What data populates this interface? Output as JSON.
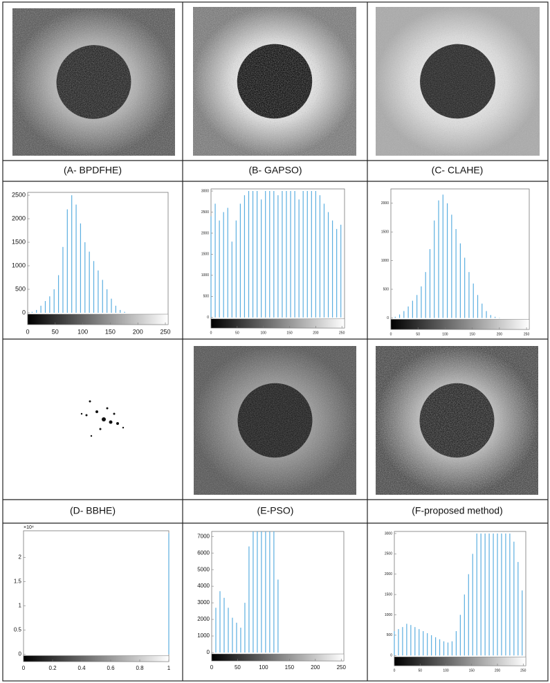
{
  "captions": [
    "(A- BPDFHE)",
    "(B- GAPSO)",
    "(C- CLAHE)",
    "(D- BBHE)",
    "(E-PSO)",
    "(F-proposed method)"
  ],
  "chart_data": [
    {
      "type": "bar",
      "color": "#5aaee0",
      "x": [
        0,
        8,
        16,
        24,
        32,
        40,
        48,
        56,
        64,
        72,
        80,
        88,
        96,
        104,
        112,
        120,
        128,
        136,
        144,
        152,
        160,
        168,
        176,
        184
      ],
      "values": [
        0,
        20,
        60,
        150,
        250,
        350,
        500,
        800,
        1400,
        2200,
        2500,
        2300,
        1900,
        1500,
        1300,
        1100,
        900,
        700,
        500,
        300,
        150,
        60,
        20,
        0
      ],
      "xlim": [
        0,
        255
      ],
      "ylim": [
        -250,
        2560
      ],
      "xticks": [
        0,
        50,
        100,
        150,
        200,
        250
      ],
      "yticks": [
        0,
        500,
        1000,
        1500,
        2000,
        2500
      ]
    },
    {
      "type": "bar",
      "color": "#5aaee0",
      "x": [
        0,
        8,
        16,
        24,
        32,
        40,
        48,
        56,
        64,
        72,
        80,
        88,
        96,
        104,
        112,
        120,
        128,
        136,
        144,
        152,
        160,
        168,
        176,
        184,
        192,
        200,
        208,
        216,
        224,
        232,
        240,
        248
      ],
      "values": [
        2400,
        2700,
        2300,
        2500,
        2600,
        1800,
        2300,
        2700,
        2900,
        3000,
        3000,
        3000,
        2800,
        3000,
        3000,
        3000,
        2900,
        3000,
        3000,
        3000,
        3000,
        2800,
        3000,
        3000,
        3000,
        3000,
        2900,
        2700,
        2500,
        2300,
        2100,
        2200
      ],
      "xlim": [
        0,
        255
      ],
      "ylim": [
        -250,
        3050
      ],
      "xticks": [
        0,
        50,
        100,
        150,
        200,
        250
      ],
      "yticks": [
        0,
        500,
        1000,
        1500,
        2000,
        2500,
        3000
      ]
    },
    {
      "type": "bar",
      "color": "#5aaee0",
      "x": [
        0,
        8,
        16,
        24,
        32,
        40,
        48,
        56,
        64,
        72,
        80,
        88,
        96,
        104,
        112,
        120,
        128,
        136,
        144,
        152,
        160,
        168,
        176,
        184,
        192,
        200,
        208
      ],
      "values": [
        0,
        20,
        60,
        120,
        200,
        300,
        400,
        550,
        800,
        1200,
        1700,
        2050,
        2150,
        2000,
        1800,
        1550,
        1300,
        1050,
        800,
        600,
        400,
        250,
        120,
        50,
        20,
        5,
        0
      ],
      "xlim": [
        0,
        255
      ],
      "ylim": [
        -200,
        2250
      ],
      "xticks": [
        0,
        50,
        100,
        150,
        200,
        250
      ],
      "yticks": [
        0,
        500,
        1000,
        1500,
        2000
      ]
    },
    {
      "type": "bar",
      "color": "#5aaee0",
      "x": [
        1
      ],
      "values": [
        25000
      ],
      "y_multiplier": "×10⁴",
      "xlim": [
        0,
        1
      ],
      "ylim": [
        -1500,
        25500
      ],
      "xticks": [
        0,
        {
          "value": 0.2,
          "label": "0.2"
        },
        {
          "value": 0.4,
          "label": "0.4"
        },
        {
          "value": 0.6,
          "label": "0.6"
        },
        {
          "value": 0.8,
          "label": "0.8"
        },
        1
      ],
      "yticks": [
        0,
        {
          "value": 5000,
          "label": "0.5"
        },
        {
          "value": 10000,
          "label": "1"
        },
        {
          "value": 15000,
          "label": "1.5"
        },
        {
          "value": 20000,
          "label": "2"
        }
      ]
    },
    {
      "type": "bar",
      "color": "#5aaee0",
      "x": [
        8,
        16,
        24,
        32,
        40,
        48,
        56,
        64,
        72,
        80,
        88,
        96,
        104,
        112,
        120,
        128
      ],
      "values": [
        2700,
        3700,
        3300,
        2700,
        2100,
        1800,
        1500,
        3000,
        6400,
        7300,
        7300,
        7300,
        7300,
        7300,
        7300,
        4400
      ],
      "xlim": [
        0,
        255
      ],
      "ylim": [
        -500,
        7300
      ],
      "xticks": [
        0,
        50,
        100,
        150,
        200,
        250
      ],
      "yticks": [
        0,
        1000,
        2000,
        3000,
        4000,
        5000,
        6000,
        7000
      ]
    },
    {
      "type": "bar",
      "color": "#5aaee0",
      "x": [
        0,
        8,
        16,
        24,
        32,
        40,
        48,
        56,
        64,
        72,
        80,
        88,
        96,
        104,
        112,
        120,
        128,
        136,
        144,
        152,
        160,
        168,
        176,
        184,
        192,
        200,
        208,
        216,
        224,
        232,
        240,
        248
      ],
      "values": [
        600,
        650,
        700,
        780,
        750,
        700,
        650,
        600,
        550,
        500,
        450,
        400,
        350,
        320,
        350,
        600,
        1000,
        1500,
        2000,
        2500,
        3000,
        3000,
        3000,
        3000,
        3000,
        3000,
        3000,
        3000,
        3000,
        2800,
        2300,
        1600
      ],
      "xlim": [
        0,
        255
      ],
      "ylim": [
        -250,
        3050
      ],
      "xticks": [
        0,
        50,
        100,
        150,
        200,
        250
      ],
      "yticks": [
        0,
        500,
        1000,
        1500,
        2000,
        2500,
        3000
      ]
    }
  ]
}
